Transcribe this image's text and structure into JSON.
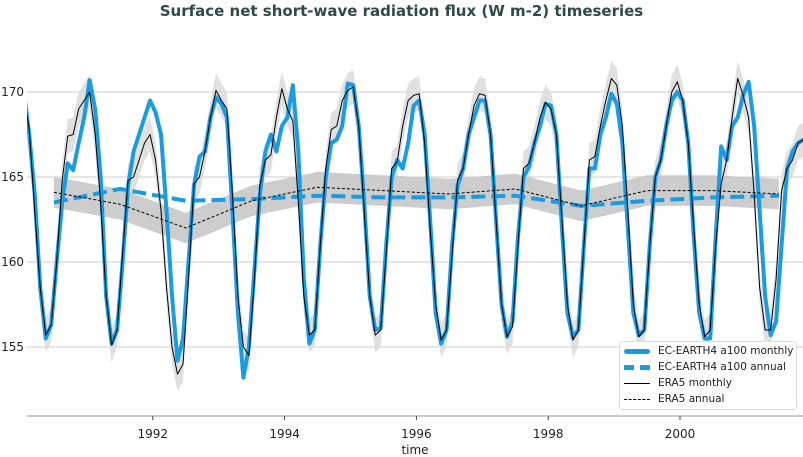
{
  "chart_data": {
    "type": "line",
    "title": "Surface net short-wave radiation flux (W m-2) timeseries",
    "xlabel": "time",
    "ylabel": "",
    "xlim": [
      "1990-01",
      "2001-12"
    ],
    "ylim": [
      150.9,
      173.4
    ],
    "x_ticks": [
      "1992",
      "1994",
      "1996",
      "1998",
      "2000"
    ],
    "y_ticks": [
      "155",
      "160",
      "165",
      "170"
    ],
    "grid": "horizontal",
    "legend_position": "bottom-right",
    "years": [
      1990,
      1991,
      1992,
      1993,
      1994,
      1995,
      1996,
      1997,
      1998,
      1999,
      2000,
      2001
    ],
    "series": [
      {
        "name": "EC-EARTH4 a100 monthly",
        "color": "#1a9be2",
        "style": "solid-thick",
        "frequency": "monthly",
        "values": [
          [
            170.0,
            167.5,
            164.0,
            158.5,
            155.5,
            156.3,
            160.0,
            163.5,
            165.8,
            165.4,
            167.0,
            168.5
          ],
          [
            170.7,
            169.0,
            165.0,
            158.0,
            155.2,
            156.0,
            160.0,
            164.5,
            166.5,
            167.5,
            168.5,
            169.5
          ],
          [
            168.8,
            167.5,
            163.0,
            158.0,
            154.2,
            155.5,
            160.0,
            164.5,
            166.2,
            166.5,
            168.5,
            169.7
          ],
          [
            169.3,
            168.5,
            163.0,
            157.0,
            153.2,
            155.0,
            159.5,
            164.0,
            166.5,
            167.5,
            166.5,
            168.0
          ],
          [
            168.5,
            170.4,
            166.5,
            159.0,
            155.2,
            156.0,
            161.0,
            165.0,
            167.0,
            167.2,
            168.0,
            170.5
          ],
          [
            170.4,
            168.0,
            163.5,
            158.0,
            156.0,
            156.1,
            161.0,
            165.0,
            166.0,
            165.5,
            167.0,
            169.2
          ],
          [
            169.5,
            167.5,
            162.5,
            157.0,
            155.2,
            156.0,
            161.0,
            164.5,
            165.5,
            167.5,
            168.5,
            169.5
          ],
          [
            169.5,
            167.5,
            162.5,
            157.5,
            155.6,
            156.5,
            161.5,
            165.0,
            165.6,
            167.0,
            168.0,
            169.3
          ],
          [
            169.2,
            167.5,
            162.0,
            157.0,
            155.6,
            156.0,
            161.0,
            165.5,
            165.5,
            167.5,
            168.5,
            169.9
          ],
          [
            169.3,
            167.0,
            162.0,
            157.0,
            155.7,
            156.0,
            161.0,
            165.0,
            166.0,
            168.0,
            169.5,
            170.0
          ],
          [
            169.5,
            167.0,
            161.5,
            157.0,
            155.5,
            155.5,
            161.5,
            166.8,
            166.0,
            168.0,
            168.5,
            169.8
          ],
          [
            170.6,
            168.0,
            163.0,
            158.0,
            155.7,
            156.5,
            161.0,
            165.5,
            166.5,
            167.0,
            167.2,
            167.2
          ]
        ]
      },
      {
        "name": "EC-EARTH4 a100 annual",
        "color": "#1a9be2",
        "style": "dashed-thick",
        "frequency": "annual",
        "values": [
          163.5,
          164.3,
          163.6,
          163.7,
          163.9,
          163.8,
          163.8,
          163.9,
          163.3,
          163.6,
          163.8,
          163.9
        ]
      },
      {
        "name": "ERA5 monthly",
        "color": "#000000",
        "style": "solid-thin",
        "frequency": "monthly",
        "band_color": "#dddddd",
        "band_halfwidth": 1.0,
        "values": [
          [
            169.8,
            167.8,
            163.0,
            158.5,
            155.7,
            156.3,
            160.0,
            164.8,
            167.4,
            167.5,
            169.0,
            169.5
          ],
          [
            170.0,
            167.5,
            163.5,
            158.0,
            155.1,
            156.0,
            160.5,
            164.8,
            165.0,
            166.0,
            167.0,
            167.5
          ],
          [
            166.0,
            163.0,
            158.5,
            155.0,
            153.4,
            154.0,
            159.0,
            164.6,
            165.0,
            166.5,
            168.5,
            170.1
          ],
          [
            169.5,
            169.0,
            164.0,
            158.0,
            155.0,
            154.5,
            159.0,
            164.5,
            166.0,
            166.3,
            168.5,
            170.2
          ],
          [
            169.0,
            168.3,
            163.5,
            158.0,
            155.7,
            156.0,
            161.0,
            165.5,
            167.8,
            168.0,
            169.5,
            170.1
          ],
          [
            170.3,
            168.0,
            163.0,
            158.0,
            155.7,
            156.0,
            160.5,
            165.5,
            165.9,
            168.0,
            169.5,
            169.8
          ],
          [
            169.9,
            167.0,
            162.0,
            157.5,
            155.4,
            156.0,
            160.5,
            164.8,
            165.5,
            167.5,
            169.2,
            169.9
          ],
          [
            169.8,
            167.5,
            162.5,
            157.5,
            155.6,
            156.2,
            161.0,
            165.5,
            165.8,
            167.0,
            168.5,
            169.4
          ],
          [
            169.0,
            167.5,
            162.5,
            157.5,
            155.4,
            156.0,
            161.0,
            166.0,
            166.2,
            168.0,
            169.5,
            170.8
          ],
          [
            170.4,
            168.0,
            163.0,
            157.5,
            155.6,
            156.0,
            161.0,
            165.0,
            166.0,
            168.0,
            170.0,
            170.6
          ],
          [
            169.5,
            167.0,
            162.0,
            157.5,
            155.6,
            156.0,
            161.0,
            164.6,
            166.0,
            168.5,
            170.8,
            169.8
          ],
          [
            168.5,
            164.0,
            158.5,
            156.0,
            156.0,
            159.0,
            164.2,
            165.5,
            166.0,
            167.0,
            167.2,
            167.3
          ]
        ]
      },
      {
        "name": "ERA5 annual",
        "color": "#000000",
        "style": "dashed-thin",
        "frequency": "annual",
        "band_color": "#c8c8c8",
        "band_halfwidth": 0.9,
        "values": [
          164.1,
          163.4,
          162.0,
          163.6,
          164.4,
          164.2,
          164.0,
          164.3,
          163.3,
          164.2,
          164.2,
          164.0
        ]
      }
    ]
  }
}
